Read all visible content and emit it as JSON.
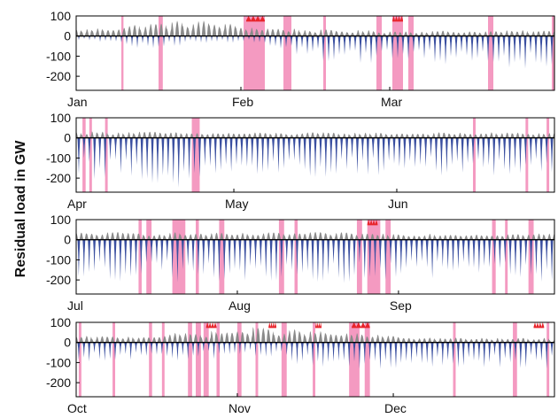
{
  "chart_data": {
    "type": "area",
    "ylabel": "Residual load in GW",
    "yticks": [
      100,
      0,
      -100,
      -200
    ],
    "ylim": [
      -270,
      100
    ],
    "colors": {
      "surplus": "#3a4fa0",
      "residual_positive": "#8a8a8a",
      "unmet_peak": "#e8242b",
      "highlight_band": "#f49ac1",
      "zero_line": "#000000"
    },
    "panels": [
      {
        "months": [
          "Jan",
          "Feb",
          "Mar"
        ],
        "month_start_day": [
          0,
          31,
          59
        ],
        "days": 90,
        "segments": [
          [
            -80,
            20,
            15
          ],
          [
            3,
            10,
            35
          ],
          [
            13,
            -10,
            60
          ],
          [
            23,
            35,
            75
          ],
          [
            33,
            10,
            45
          ],
          [
            45,
            -80,
            30
          ],
          [
            58,
            -100,
            25
          ],
          [
            75,
            -110,
            25
          ]
        ],
        "highlight_days": [
          [
            8.5,
            8.9
          ],
          [
            15.5,
            16.3
          ],
          [
            31.5,
            35.5
          ],
          [
            39,
            40.5
          ],
          [
            46.5,
            47
          ],
          [
            56.5,
            57.5
          ],
          [
            59.5,
            61.5
          ],
          [
            62.5,
            63.5
          ],
          [
            77.5,
            78.5
          ],
          [
            89.5,
            90
          ]
        ],
        "red_days": [
          [
            32,
            35.5
          ],
          [
            59.5,
            61.5
          ]
        ]
      },
      {
        "months": [
          "Apr",
          "May",
          "Jun"
        ],
        "month_start_day": [
          0,
          30,
          61
        ],
        "days": 91,
        "segments": [
          [
            -120,
            30,
            25
          ],
          [
            12,
            -170,
            30
          ],
          [
            20,
            -200,
            25
          ],
          [
            30,
            -140,
            25
          ],
          [
            45,
            -150,
            25
          ],
          [
            60,
            -150,
            25
          ],
          [
            75,
            -140,
            25
          ]
        ],
        "highlight_days": [
          [
            1.2,
            1.8
          ],
          [
            2.5,
            3
          ],
          [
            5.5,
            6
          ],
          [
            22,
            23.5
          ],
          [
            75.5,
            76
          ],
          [
            85.5,
            86
          ],
          [
            89.5,
            90
          ]
        ],
        "red_days": []
      },
      {
        "months": [
          "Jul",
          "Aug",
          "Sep"
        ],
        "month_start_day": [
          0,
          31,
          62
        ],
        "days": 92,
        "segments": [
          [
            -170,
            25,
            30
          ],
          [
            15,
            -160,
            35
          ],
          [
            30,
            -150,
            30
          ],
          [
            45,
            -150,
            35
          ],
          [
            60,
            -170,
            30
          ],
          [
            75,
            -160,
            30
          ]
        ],
        "highlight_days": [
          [
            12,
            12.6
          ],
          [
            13.5,
            14.5
          ],
          [
            18.5,
            21
          ],
          [
            23,
            23.6
          ],
          [
            27.5,
            28.5
          ],
          [
            39,
            40
          ],
          [
            42,
            42.6
          ],
          [
            54,
            55
          ],
          [
            56,
            58.5
          ],
          [
            59.5,
            60.5
          ],
          [
            80,
            80.7
          ],
          [
            82.5,
            83
          ],
          [
            87,
            88
          ]
        ],
        "red_days": [
          [
            56,
            58
          ]
        ]
      },
      {
        "months": [
          "Oct",
          "Nov",
          "Dec"
        ],
        "month_start_day": [
          0,
          31,
          61
        ],
        "days": 92,
        "segments": [
          [
            -150,
            20,
            15
          ],
          [
            10,
            -60,
            30
          ],
          [
            25,
            -30,
            50
          ],
          [
            35,
            5,
            70
          ],
          [
            45,
            -60,
            55
          ],
          [
            55,
            -80,
            40
          ],
          [
            65,
            -100,
            25
          ],
          [
            78,
            -90,
            20
          ]
        ],
        "highlight_days": [
          [
            0.5,
            1
          ],
          [
            7,
            7.5
          ],
          [
            14,
            14.6
          ],
          [
            16.5,
            17
          ],
          [
            21.5,
            22.3
          ],
          [
            23,
            24
          ],
          [
            24.5,
            25.5
          ],
          [
            27,
            27.6
          ],
          [
            31,
            31.8
          ],
          [
            34.5,
            35
          ],
          [
            39.5,
            40.5
          ],
          [
            45.5,
            46
          ],
          [
            52.5,
            54.5
          ],
          [
            55.5,
            56.5
          ],
          [
            72.5,
            73
          ],
          [
            84,
            84.8
          ],
          [
            90.5,
            91
          ]
        ],
        "red_days": [
          [
            25,
            27
          ],
          [
            37,
            38.5
          ],
          [
            46,
            47.2
          ],
          [
            53,
            56.5
          ],
          [
            88,
            90
          ]
        ]
      }
    ]
  }
}
